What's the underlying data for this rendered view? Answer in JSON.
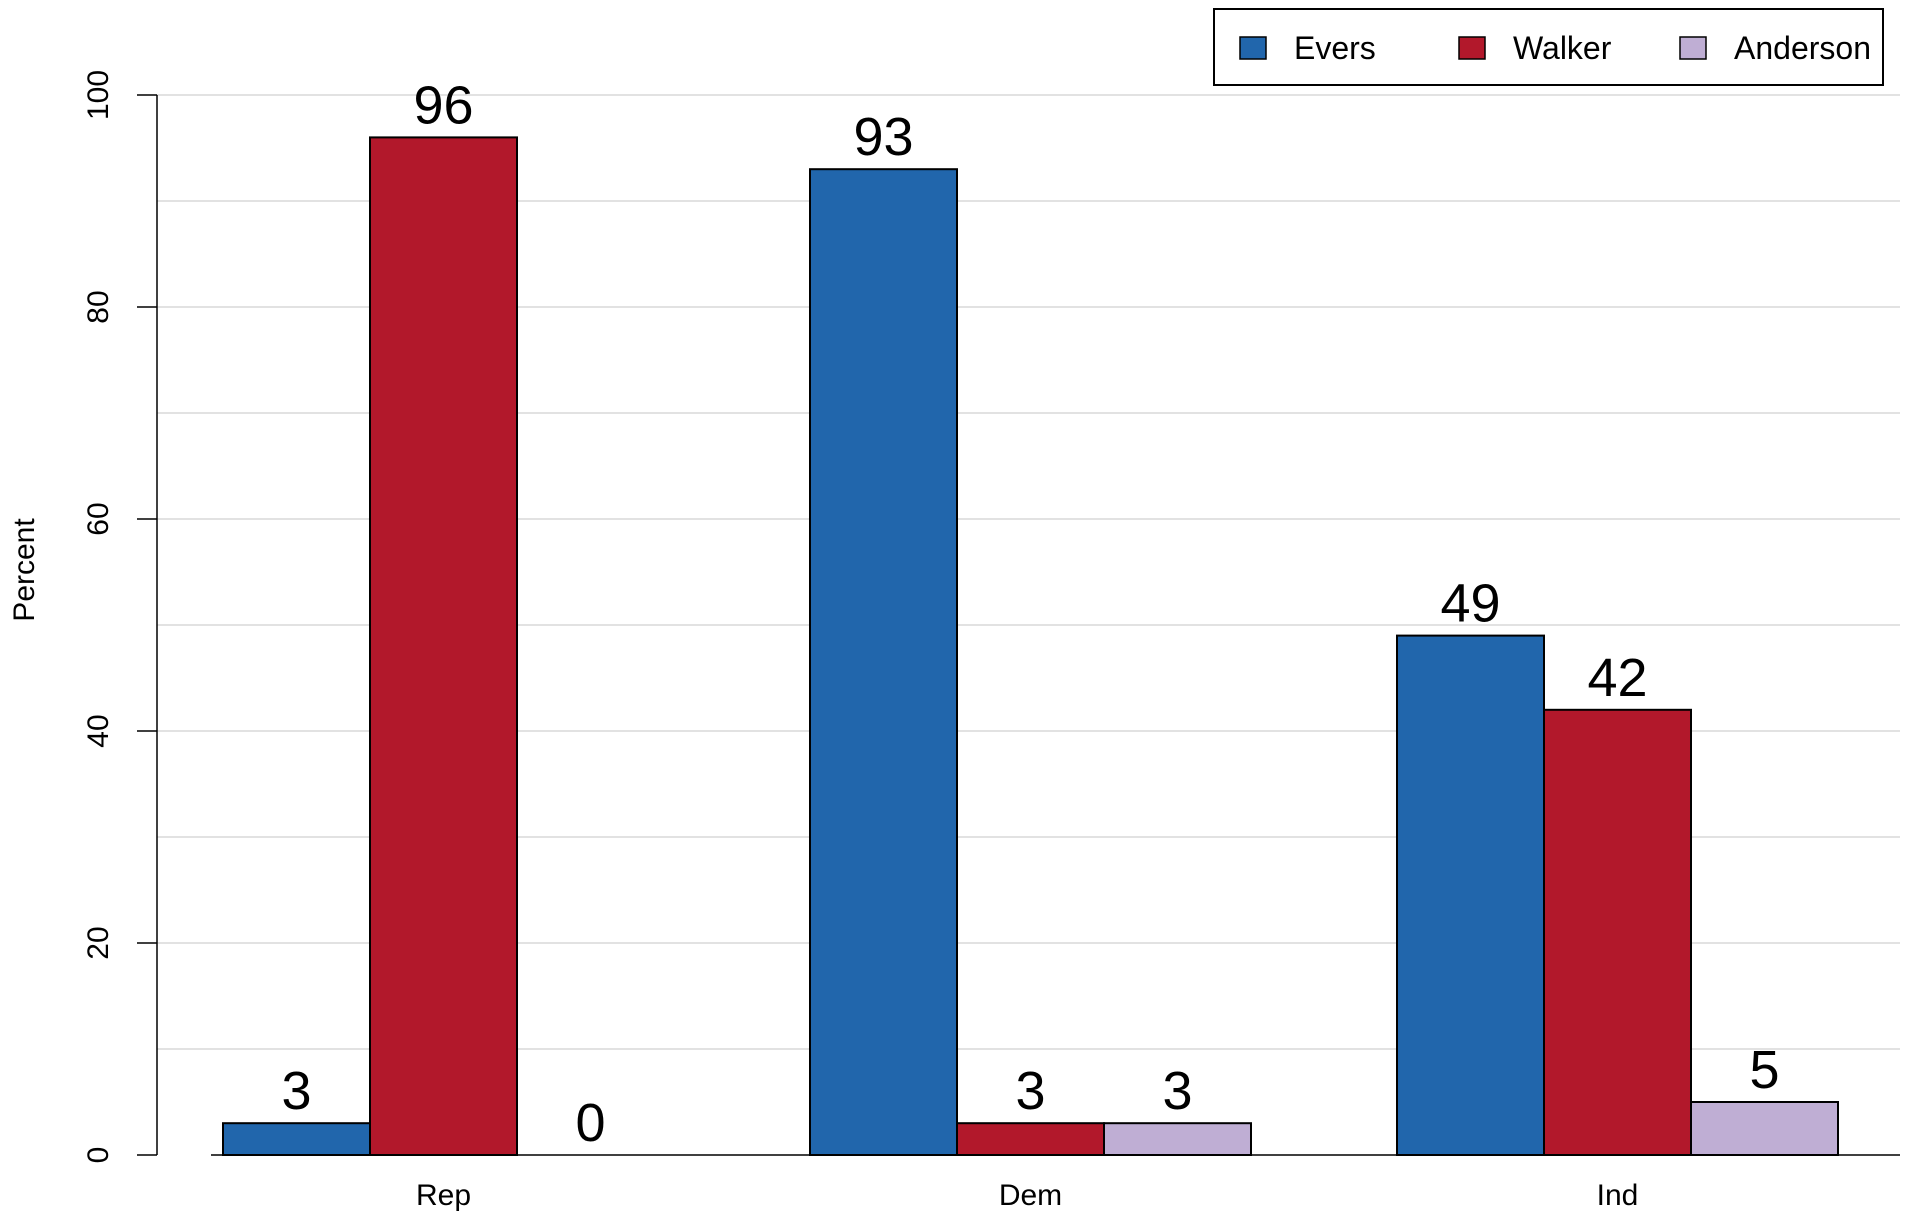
{
  "chart_data": {
    "type": "bar",
    "title": "",
    "xlabel": "",
    "ylabel": "Percent",
    "ylim": [
      0,
      100
    ],
    "yticks": [
      0,
      20,
      40,
      60,
      80,
      100
    ],
    "grid": true,
    "legend_position": "top-right",
    "categories": [
      "Rep",
      "Dem",
      "Ind"
    ],
    "series": [
      {
        "name": "Evers",
        "color": "#2166ac",
        "values": [
          3,
          93,
          49
        ]
      },
      {
        "name": "Walker",
        "color": "#b2182b",
        "values": [
          96,
          3,
          42
        ]
      },
      {
        "name": "Anderson",
        "color": "#bfaed4",
        "values": [
          0,
          3,
          5
        ]
      }
    ]
  }
}
